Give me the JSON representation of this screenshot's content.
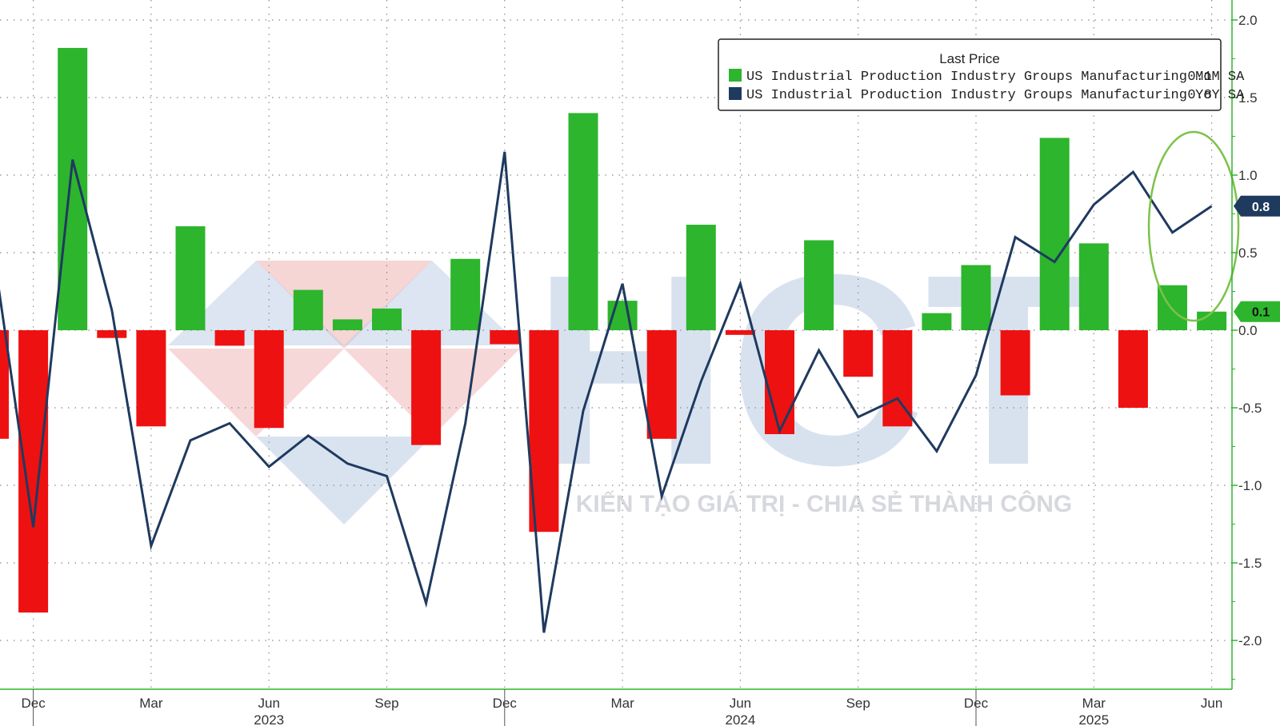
{
  "chart_data": {
    "type": "bar",
    "title": "",
    "xlabel": "",
    "ylabel": "",
    "ylim": [
      -2.3,
      2.15
    ],
    "yticks": [
      2.0,
      1.5,
      1.0,
      0.5,
      0.0,
      -0.5,
      -1.0,
      -1.5,
      -2.0
    ],
    "ytick_labels": [
      "2.0",
      "1.5",
      "1.0",
      "0.5",
      "0.0",
      "-0.5",
      "-1.0",
      "-1.5",
      "-2.0"
    ],
    "categories": [
      "2022-11",
      "2022-12",
      "2023-01",
      "2023-02",
      "2023-03",
      "2023-04",
      "2023-05",
      "2023-06",
      "2023-07",
      "2023-08",
      "2023-09",
      "2023-10",
      "2023-11",
      "2023-12",
      "2024-01",
      "2024-02",
      "2024-03",
      "2024-04",
      "2024-05",
      "2024-06",
      "2024-07",
      "2024-08",
      "2024-09",
      "2024-10",
      "2024-11",
      "2024-12",
      "2025-01",
      "2025-02",
      "2025-03",
      "2025-04",
      "2025-05",
      "2025-06"
    ],
    "x_month_labels": [
      {
        "month": "2022-12",
        "label": "Dec"
      },
      {
        "month": "2023-03",
        "label": "Mar"
      },
      {
        "month": "2023-06",
        "label": "Jun"
      },
      {
        "month": "2023-09",
        "label": "Sep"
      },
      {
        "month": "2023-12",
        "label": "Dec"
      },
      {
        "month": "2024-03",
        "label": "Mar"
      },
      {
        "month": "2024-06",
        "label": "Jun"
      },
      {
        "month": "2024-09",
        "label": "Sep"
      },
      {
        "month": "2024-12",
        "label": "Dec"
      },
      {
        "month": "2025-03",
        "label": "Mar"
      },
      {
        "month": "2025-06",
        "label": "Jun"
      }
    ],
    "x_year_labels": [
      {
        "month": "2023-06",
        "label": "2023"
      },
      {
        "month": "2024-06",
        "label": "2024"
      },
      {
        "month": "2025-03",
        "label": "2025"
      }
    ],
    "series": [
      {
        "name": "US Industrial Production Industry Groups Manufacturing MoM SA",
        "kind": "bar",
        "values": [
          -0.7,
          -1.82,
          1.82,
          -0.05,
          -0.62,
          0.67,
          -0.1,
          -0.63,
          0.26,
          0.07,
          0.14,
          -0.74,
          0.46,
          -0.09,
          -1.3,
          1.4,
          0.19,
          -0.7,
          0.68,
          -0.03,
          -0.67,
          0.58,
          -0.3,
          -0.62,
          0.11,
          0.42,
          -0.42,
          1.24,
          0.56,
          -0.5,
          0.29,
          0.12
        ],
        "positive_color": "#2db52d",
        "negative_color": "#ee1111"
      },
      {
        "name": "US Industrial Production Industry Groups Manufacturing YoY SA",
        "kind": "line",
        "values": [
          0.48,
          -1.27,
          1.1,
          0.13,
          -1.39,
          -0.71,
          -0.6,
          -0.88,
          -0.68,
          -0.86,
          -0.94,
          -1.76,
          -0.6,
          1.15,
          -1.95,
          -0.52,
          0.3,
          -1.07,
          -0.33,
          0.3,
          -0.65,
          -0.13,
          -0.56,
          -0.44,
          -0.78,
          -0.29,
          0.6,
          0.44,
          0.81,
          1.02,
          0.63,
          0.8
        ],
        "color": "#1f3a5f"
      }
    ],
    "legend": {
      "title": "Last Price",
      "position": "top-right",
      "entries": [
        {
          "label": "US Industrial Production Industry Groups Manufacturing MoM SA",
          "value": "0.1",
          "color": "#2db52d"
        },
        {
          "label": "US Industrial Production Industry Groups Manufacturing YoY SA",
          "value": "0.8",
          "color": "#1f3a5f"
        }
      ]
    },
    "axis_badges": [
      {
        "text": "0.8",
        "value": 0.8,
        "color": "#1f3a5f",
        "text_color": "#ffffff"
      },
      {
        "text": "0.1",
        "value": 0.12,
        "color": "#2db52d",
        "text_color": "#111111"
      }
    ],
    "highlight": {
      "shape": "ellipse",
      "color": "#7cc24a",
      "around": [
        "2025-05",
        "2025-06"
      ]
    },
    "grid": true
  },
  "watermark": {
    "letters": "HCT",
    "slogan": "KIẾN TẠO GIÁ TRỊ - CHIA SẺ THÀNH CÔNG"
  }
}
